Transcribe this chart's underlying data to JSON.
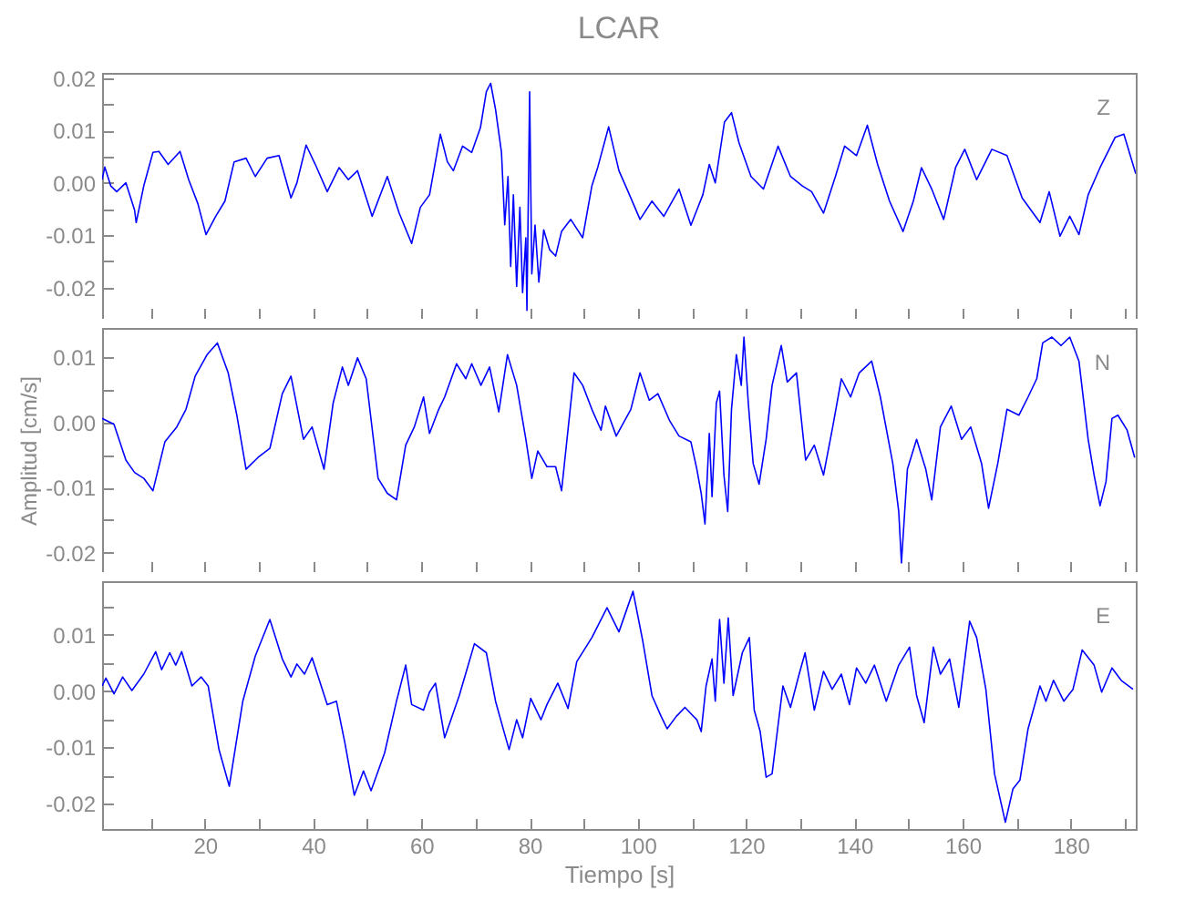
{
  "chart_data": [
    {
      "type": "line",
      "title": "LCAR",
      "annotations": [
        "Z"
      ],
      "grid": false,
      "legend": false,
      "tick_labels": "y",
      "xlim": [
        1,
        192
      ],
      "xticks": [
        10,
        20,
        30,
        40,
        50,
        60,
        70,
        80,
        90,
        100,
        110,
        120,
        130,
        140,
        150,
        160,
        170,
        180,
        190
      ],
      "ylim": [
        -0.026,
        0.021
      ],
      "yticks": [
        -0.02,
        {
          "value": -0.015,
          "label": null
        },
        -0.01,
        {
          "value": -0.005,
          "label": null
        },
        {
          "value": 0,
          "label": "0.00"
        },
        {
          "value": 0.005,
          "label": null
        },
        0.01,
        {
          "value": 0.015,
          "label": null
        },
        0.02
      ],
      "series": [
        {
          "color": "#0000ff",
          "x": [
            1,
            1.5,
            2.6,
            3.7,
            5.4,
            7,
            7.3,
            8.7,
            10.4,
            11.5,
            13.2,
            15.4,
            17,
            18.7,
            20.2,
            22,
            23.7,
            25.4,
            27.6,
            29.3,
            31.5,
            33.7,
            35.9,
            37,
            38.7,
            40.4,
            42.6,
            44.8,
            46.5,
            48.2,
            50.9,
            53.7,
            55.9,
            58.2,
            59.8,
            61.5,
            63.5,
            64.8,
            65.9,
            67.6,
            69.3,
            70.9,
            72,
            72.8,
            73.7,
            74.8,
            75.4,
            76,
            76.5,
            77,
            77.6,
            78.2,
            78.7,
            79.3,
            79.5,
            80,
            80.4,
            81,
            81.7,
            82.6,
            83.7,
            84.8,
            85.9,
            87.6,
            89.8,
            91.5,
            92.6,
            94.6,
            96.5,
            98.2,
            100.4,
            102.6,
            104.8,
            107.6,
            109.8,
            112,
            113.2,
            114.3,
            116,
            117.3,
            118.7,
            120.9,
            123.2,
            125.9,
            128.2,
            130.4,
            132.1,
            134.3,
            136.5,
            138.2,
            140.4,
            142.4,
            144.3,
            146.5,
            149,
            150.9,
            152.4,
            154.3,
            156.5,
            158.7,
            160.4,
            162.6,
            165.4,
            168.2,
            171,
            174.3,
            176,
            178,
            179.8,
            181.5,
            183.2,
            185.4,
            188.2,
            189.8,
            192
          ],
          "values": [
            0.0006,
            0.003,
            -0.0006,
            -0.0017,
            0,
            -0.0052,
            -0.0076,
            -0.0006,
            0.0058,
            0.006,
            0.0035,
            0.006,
            0.0006,
            -0.004,
            -0.0099,
            -0.0064,
            -0.0035,
            0.004,
            0.0047,
            0.0012,
            0.0047,
            0.0052,
            -0.0029,
            0,
            0.0072,
            0.0035,
            -0.0017,
            0.0029,
            0.0006,
            0.0023,
            -0.0064,
            0.0012,
            -0.0058,
            -0.0116,
            -0.0047,
            -0.0023,
            0.0093,
            0.004,
            0.0023,
            0.007,
            0.0058,
            0.0105,
            0.0174,
            0.019,
            0.014,
            0.0058,
            -0.008,
            0.0012,
            -0.016,
            -0.0023,
            -0.0198,
            -0.0047,
            -0.021,
            -0.0105,
            -0.0244,
            0.0174,
            -0.0174,
            -0.0081,
            -0.019,
            -0.009,
            -0.0128,
            -0.014,
            -0.0093,
            -0.007,
            -0.0105,
            -0.0006,
            0.003,
            0.0107,
            0.0023,
            -0.0017,
            -0.007,
            -0.0035,
            -0.0064,
            -0.0012,
            -0.0081,
            -0.0023,
            0.0035,
            0,
            0.0116,
            0.0134,
            0.0076,
            0.0012,
            -0.0012,
            0.007,
            0.0012,
            -0.0006,
            -0.0017,
            -0.0058,
            0.0012,
            0.007,
            0.0052,
            0.011,
            0.0035,
            -0.0035,
            -0.0093,
            -0.0035,
            0.0029,
            -0.0012,
            -0.007,
            0.0029,
            0.0064,
            0.0006,
            0.0064,
            0.0052,
            -0.0029,
            -0.0076,
            -0.0017,
            -0.0102,
            -0.0064,
            -0.0099,
            -0.0023,
            0.0029,
            0.0087,
            0.0093,
            0.0017
          ]
        }
      ]
    },
    {
      "type": "line",
      "ylabel": "Amplitud [cm/s]",
      "annotations": [
        "N"
      ],
      "grid": false,
      "legend": false,
      "tick_labels": "y",
      "xlim": [
        1,
        192
      ],
      "xticks": [
        10,
        20,
        30,
        40,
        50,
        60,
        70,
        80,
        90,
        100,
        110,
        120,
        130,
        140,
        150,
        160,
        170,
        180,
        190
      ],
      "ylim": [
        -0.023,
        0.0145
      ],
      "yticks": [
        -0.02,
        {
          "value": -0.015,
          "label": null
        },
        -0.01,
        {
          "value": -0.005,
          "label": null
        },
        {
          "value": 0,
          "label": "0.00"
        },
        {
          "value": 0.005,
          "label": null
        },
        0.01
      ],
      "series": [
        {
          "color": "#0000ff",
          "x": [
            1,
            3.2,
            5.4,
            7,
            8.7,
            10.4,
            12.6,
            14.8,
            16.5,
            18.2,
            20.4,
            22.3,
            24.3,
            25.9,
            27.6,
            29.8,
            32,
            34.3,
            35.9,
            38.2,
            39.8,
            42,
            43.7,
            45.4,
            46.5,
            48.2,
            49.8,
            52,
            53.7,
            55.4,
            57.1,
            58.7,
            60.4,
            61.5,
            63.2,
            64.3,
            66.5,
            68.2,
            69.3,
            71,
            72.6,
            74.3,
            75.9,
            77.6,
            79.3,
            80.4,
            81.5,
            83.2,
            84.8,
            85.9,
            88.2,
            89.8,
            91.5,
            93.2,
            94,
            96,
            98.7,
            100.4,
            102.1,
            103.7,
            105.9,
            107.6,
            109.8,
            110.9,
            111.7,
            112.4,
            113.2,
            113.7,
            114.5,
            115.1,
            115.9,
            116.6,
            117.3,
            118.2,
            119.1,
            119.6,
            120.4,
            121.3,
            122.4,
            123.7,
            124.8,
            126.5,
            127.6,
            129.3,
            131,
            132.6,
            134.3,
            136,
            137.6,
            139.3,
            140.9,
            143.2,
            144.8,
            147.1,
            148.2,
            148.7,
            149.8,
            151.5,
            153.2,
            154.3,
            155.9,
            157.9,
            159.8,
            161.5,
            163.5,
            164.8,
            166.5,
            168.2,
            170.4,
            172.1,
            173.7,
            174.8,
            176.5,
            178.2,
            179.8,
            181.5,
            183.2,
            184.3,
            185.4,
            186.5,
            187.6,
            188.7,
            190.4,
            191.8
          ],
          "values": [
            0.0006,
            -0.0003,
            -0.0058,
            -0.0077,
            -0.0086,
            -0.0105,
            -0.003,
            -0.0007,
            0.002,
            0.0071,
            0.0104,
            0.0122,
            0.0076,
            0.0011,
            -0.0072,
            -0.0054,
            -0.004,
            0.0044,
            0.0071,
            -0.0026,
            -0.0007,
            -0.0072,
            0.003,
            0.0085,
            0.0057,
            0.0099,
            0.0067,
            -0.0086,
            -0.0109,
            -0.0119,
            -0.0035,
            -0.0007,
            0.0039,
            -0.0017,
            0.002,
            0.0039,
            0.009,
            0.0067,
            0.009,
            0.0057,
            0.0085,
            0.0016,
            0.0104,
            0.0057,
            -0.0026,
            -0.0086,
            -0.0044,
            -0.0068,
            -0.0068,
            -0.0105,
            0.0076,
            0.0057,
            0.002,
            -0.0012,
            0.0025,
            -0.0021,
            0.002,
            0.0076,
            0.0034,
            0.0044,
            0.0002,
            -0.0021,
            -0.003,
            -0.0072,
            -0.0109,
            -0.0156,
            -0.0017,
            -0.0114,
            0.003,
            0.0048,
            -0.0081,
            -0.0137,
            0.002,
            0.0104,
            0.0057,
            0.0131,
            0.003,
            -0.0063,
            -0.0095,
            -0.0026,
            0.0057,
            0.0118,
            0.0062,
            0.0076,
            -0.0058,
            -0.0035,
            -0.0081,
            -0.0007,
            0.0067,
            0.0039,
            0.0076,
            0.0094,
            0.0039,
            -0.0063,
            -0.0137,
            -0.0216,
            -0.0072,
            -0.0026,
            -0.0072,
            -0.0119,
            -0.0007,
            0.0025,
            -0.0026,
            -0.0007,
            -0.0063,
            -0.0132,
            -0.0063,
            0.002,
            0.0011,
            0.0039,
            0.0067,
            0.0122,
            0.0131,
            0.0118,
            0.0131,
            0.0094,
            -0.0026,
            -0.0081,
            -0.0128,
            -0.0091,
            0.0006,
            0.0011,
            -0.0012,
            -0.0054
          ]
        }
      ]
    },
    {
      "type": "line",
      "xlabel": "Tiempo [s]",
      "annotations": [
        "E"
      ],
      "grid": false,
      "legend": false,
      "xlim": [
        1,
        192
      ],
      "xticks": [
        {
          "value": 10,
          "label": null
        },
        {
          "value": 20,
          "label": "20"
        },
        {
          "value": 30,
          "label": null
        },
        {
          "value": 40,
          "label": "40"
        },
        {
          "value": 50,
          "label": null
        },
        {
          "value": 60,
          "label": "60"
        },
        {
          "value": 70,
          "label": null
        },
        {
          "value": 80,
          "label": "80"
        },
        {
          "value": 90,
          "label": null
        },
        {
          "value": 100,
          "label": "100"
        },
        {
          "value": 110,
          "label": null
        },
        {
          "value": 120,
          "label": "120"
        },
        {
          "value": 130,
          "label": null
        },
        {
          "value": 140,
          "label": "140"
        },
        {
          "value": 150,
          "label": null
        },
        {
          "value": 160,
          "label": "160"
        },
        {
          "value": 170,
          "label": null
        },
        {
          "value": 180,
          "label": "180"
        },
        {
          "value": 190,
          "label": null
        }
      ],
      "ylim": [
        -0.0245,
        0.0195
      ],
      "yticks": [
        -0.02,
        {
          "value": -0.015,
          "label": null
        },
        -0.01,
        {
          "value": -0.005,
          "label": null
        },
        {
          "value": 0,
          "label": "0.00"
        },
        {
          "value": 0.005,
          "label": null
        },
        0.01,
        {
          "value": 0.015,
          "label": null
        }
      ],
      "series": [
        {
          "color": "#0000ff",
          "x": [
            1,
            1.7,
            3.2,
            4.8,
            6.5,
            8.7,
            10.9,
            12,
            13.5,
            14.6,
            15.7,
            17.6,
            19.3,
            20.6,
            22.6,
            24.5,
            27,
            29.3,
            32,
            34.3,
            35.9,
            37,
            38.4,
            39.8,
            42.6,
            44.3,
            45.9,
            47.6,
            49.3,
            50.7,
            53.2,
            55.4,
            57.1,
            58.2,
            60.4,
            61.5,
            62.6,
            64.3,
            67,
            69.8,
            72,
            73.7,
            75.4,
            76.2,
            77.6,
            78.7,
            80.2,
            82.1,
            83.2,
            85.2,
            87.1,
            88.7,
            91.5,
            94.3,
            96.5,
            99.1,
            100.9,
            102.6,
            104.3,
            105.4,
            107.1,
            108.7,
            110.9,
            111.7,
            112.6,
            113.7,
            114.3,
            115.1,
            115.9,
            116.7,
            117.6,
            119.3,
            120.6,
            121.5,
            122.6,
            123.7,
            124.8,
            125.9,
            126.8,
            128.2,
            129.8,
            130.9,
            132.6,
            134.3,
            135.9,
            137.6,
            139.1,
            140.4,
            142.1,
            143.7,
            145.9,
            148.2,
            150.2,
            151.5,
            152.9,
            154.6,
            155.9,
            157.6,
            159.3,
            161.3,
            162.6,
            164.3,
            165.9,
            167.9,
            169.3,
            170.6,
            172.1,
            174.3,
            175.4,
            176.8,
            178.7,
            180.4,
            182.1,
            184.3,
            185.7,
            187.6,
            189.3,
            191.5
          ],
          "values": [
            0.0009,
            0.0023,
            -0.0005,
            0.0025,
            0.0001,
            0.003,
            0.007,
            0.0038,
            0.0068,
            0.0046,
            0.007,
            0.0009,
            0.0025,
            0.0009,
            -0.0104,
            -0.0169,
            -0.0018,
            0.0062,
            0.0127,
            0.0057,
            0.0025,
            0.0048,
            0.003,
            0.0059,
            -0.0024,
            -0.0018,
            -0.0094,
            -0.0185,
            -0.0142,
            -0.0177,
            -0.011,
            -0.0018,
            0.0046,
            -0.0024,
            -0.0034,
            -0.0002,
            0.0014,
            -0.0083,
            -0.0008,
            0.0084,
            0.0068,
            -0.0018,
            -0.0077,
            -0.0104,
            -0.0051,
            -0.0083,
            -0.0013,
            -0.0051,
            -0.0024,
            0.0014,
            -0.0031,
            0.0052,
            0.0095,
            0.0148,
            0.0105,
            0.0177,
            0.0089,
            -0.0008,
            -0.0045,
            -0.0067,
            -0.0045,
            -0.0029,
            -0.0051,
            -0.0072,
            0.0009,
            0.0057,
            -0.0018,
            0.0127,
            0.0014,
            0.013,
            -0.0008,
            0.0068,
            0.0095,
            -0.0034,
            -0.0072,
            -0.0153,
            -0.0147,
            -0.0061,
            0.0009,
            -0.0029,
            0.003,
            0.0068,
            -0.0034,
            0.0035,
            0.0003,
            0.003,
            -0.0024,
            0.0041,
            0.0014,
            0.0046,
            -0.0018,
            0.0046,
            0.0078,
            -0.0008,
            -0.0056,
            0.0078,
            0.003,
            0.0057,
            -0.0029,
            0.0124,
            0.0095,
            0.0003,
            -0.0147,
            -0.0233,
            -0.0174,
            -0.0158,
            -0.0067,
            0.0009,
            -0.0018,
            0.0019,
            -0.0018,
            0.0003,
            0.0073,
            0.0046,
            -0.0002,
            0.0041,
            0.0019,
            0.0003
          ]
        }
      ]
    }
  ]
}
